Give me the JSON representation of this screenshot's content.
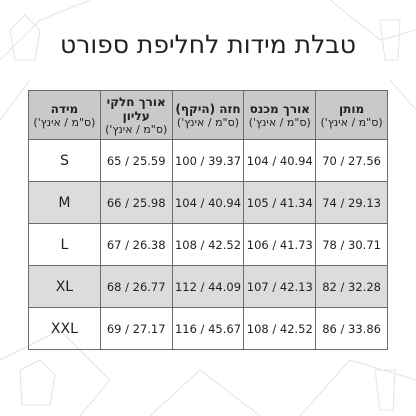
{
  "title": "טבלת מידות לחליפת ספורט",
  "table": {
    "headers": [
      {
        "name": "מידה",
        "unit": "(ס\"מ / אינץ')"
      },
      {
        "name": "אורך חלקי עליון",
        "unit": "(ס\"מ / אינץ')"
      },
      {
        "name": "חזה (היקף)",
        "unit": "(ס\"מ / אינץ')"
      },
      {
        "name": "אורך מכנס",
        "unit": "(ס\"מ / אינץ')"
      },
      {
        "name": "מותן",
        "unit": "(ס\"מ / אינץ')"
      }
    ],
    "rows": [
      [
        "S",
        "65 / 25.59",
        "100 / 39.37",
        "104 / 40.94",
        "70 / 27.56"
      ],
      [
        "M",
        "66 / 25.98",
        "104 / 40.94",
        "105 / 41.34",
        "74 / 29.13"
      ],
      [
        "L",
        "67 / 26.38",
        "108 / 42.52",
        "106 / 41.73",
        "78 / 30.71"
      ],
      [
        "XL",
        "68 / 26.77",
        "112 / 44.09",
        "107 / 42.13",
        "82 / 32.28"
      ],
      [
        "XXL",
        "69 / 27.17",
        "116 / 45.67",
        "108 / 42.52",
        "86 / 33.86"
      ]
    ]
  }
}
